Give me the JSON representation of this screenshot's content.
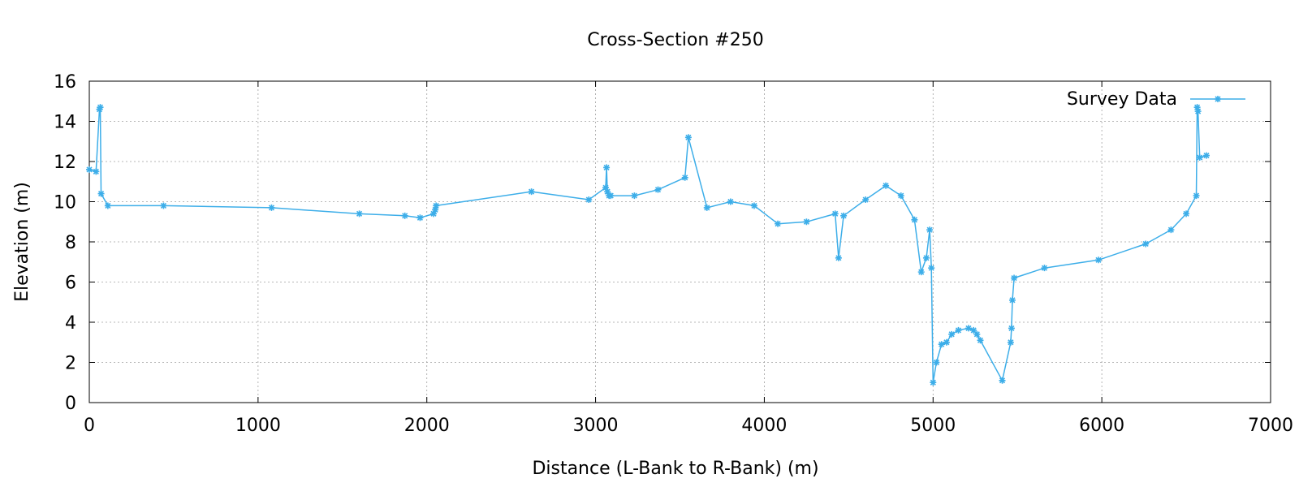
{
  "chart_data": {
    "type": "line",
    "title": "Cross-Section #250",
    "xlabel": "Distance (L-Bank to R-Bank) (m)",
    "ylabel": "Elevation (m)",
    "xlim": [
      0,
      7000
    ],
    "ylim": [
      0,
      16
    ],
    "x_ticks": [
      0,
      1000,
      2000,
      3000,
      4000,
      5000,
      6000,
      7000
    ],
    "y_ticks": [
      0,
      2,
      4,
      6,
      8,
      10,
      12,
      14,
      16
    ],
    "grid": true,
    "legend_position": "top-right",
    "series": [
      {
        "name": "Survey Data",
        "color": "#3daee9",
        "marker": "star",
        "x": [
          0,
          40,
          60,
          65,
          70,
          110,
          440,
          1080,
          1600,
          1870,
          1960,
          2040,
          2050,
          2055,
          2620,
          2960,
          3060,
          3065,
          3070,
          3080,
          3090,
          3230,
          3370,
          3530,
          3550,
          3660,
          3800,
          3940,
          4080,
          4250,
          4420,
          4440,
          4470,
          4600,
          4720,
          4810,
          4890,
          4930,
          4960,
          4980,
          4990,
          5000,
          5020,
          5050,
          5080,
          5110,
          5150,
          5210,
          5240,
          5260,
          5280,
          5410,
          5460,
          5465,
          5470,
          5480,
          5660,
          5980,
          6260,
          6410,
          6500,
          6560,
          6565,
          6570,
          6580,
          6620
        ],
        "y": [
          11.6,
          11.5,
          14.6,
          14.7,
          10.4,
          9.8,
          9.8,
          9.7,
          9.4,
          9.3,
          9.2,
          9.4,
          9.6,
          9.8,
          10.5,
          10.1,
          10.7,
          11.7,
          10.5,
          10.3,
          10.3,
          10.3,
          10.6,
          11.2,
          13.2,
          9.7,
          10.0,
          9.8,
          8.9,
          9.0,
          9.4,
          7.2,
          9.3,
          10.1,
          10.8,
          10.3,
          9.1,
          6.5,
          7.2,
          8.6,
          6.7,
          1.0,
          2.0,
          2.9,
          3.0,
          3.4,
          3.6,
          3.7,
          3.6,
          3.4,
          3.1,
          1.1,
          3.0,
          3.7,
          5.1,
          6.2,
          6.7,
          7.1,
          7.9,
          8.6,
          9.4,
          10.3,
          14.7,
          14.5,
          12.2,
          12.3
        ]
      }
    ]
  }
}
